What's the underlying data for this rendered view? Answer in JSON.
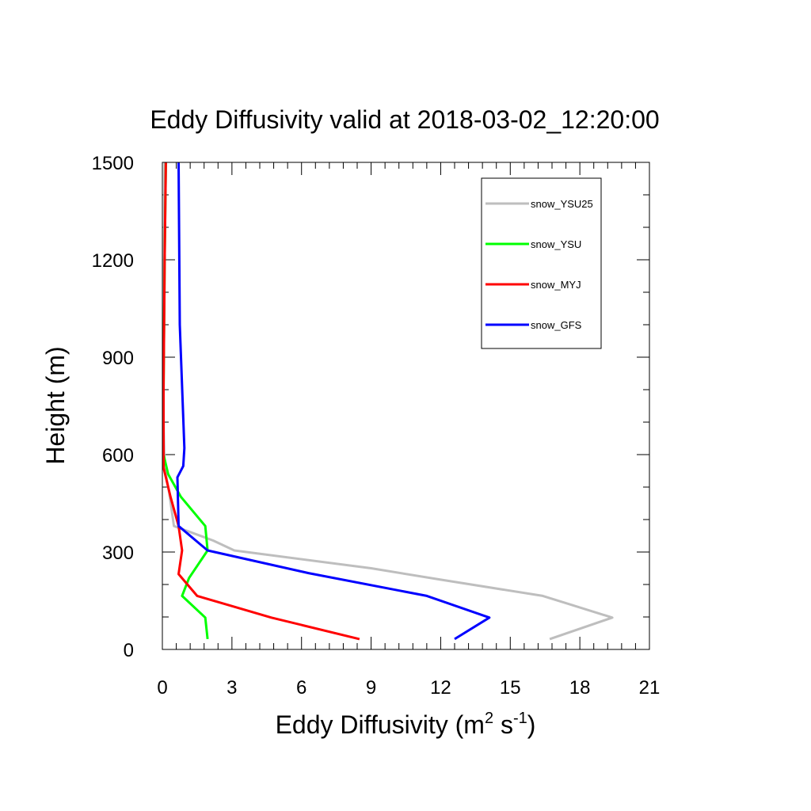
{
  "chart_data": {
    "type": "line",
    "title": "Eddy Diffusivity valid at 2018-03-02_12:20:00",
    "xlabel": "Eddy Diffusivity (m",
    "xlabel_sup1": "2",
    "xlabel_mid": " s",
    "xlabel_sup2": "-1",
    "xlabel_end": ")",
    "ylabel": "Height (m)",
    "xlim": [
      0,
      21
    ],
    "ylim": [
      0,
      1500
    ],
    "xticks": [
      0,
      3,
      6,
      9,
      12,
      15,
      18,
      21
    ],
    "yticks": [
      0,
      300,
      600,
      900,
      1200,
      1500
    ],
    "grid": false,
    "legend_position": "top-right",
    "series": [
      {
        "name": "snow_YSU25",
        "color": "#bebebe",
        "points": [
          [
            16.7,
            32
          ],
          [
            19.4,
            98
          ],
          [
            16.4,
            165
          ],
          [
            12.0,
            215
          ],
          [
            9.0,
            250
          ],
          [
            3.1,
            305
          ],
          [
            2.2,
            335
          ],
          [
            0.5,
            380
          ],
          [
            0.3,
            480
          ],
          [
            0.1,
            560
          ],
          [
            0.05,
            700
          ],
          [
            0.05,
            1000
          ],
          [
            0.1,
            1500
          ]
        ]
      },
      {
        "name": "snow_YSU",
        "color": "#00ff00",
        "points": [
          [
            1.95,
            32
          ],
          [
            1.85,
            98
          ],
          [
            0.85,
            165
          ],
          [
            1.15,
            220
          ],
          [
            1.95,
            305
          ],
          [
            1.85,
            380
          ],
          [
            0.8,
            470
          ],
          [
            0.25,
            540
          ],
          [
            0.05,
            600
          ],
          [
            0.05,
            800
          ],
          [
            0.1,
            1200
          ],
          [
            0.15,
            1500
          ]
        ]
      },
      {
        "name": "snow_MYJ",
        "color": "#ff0000",
        "points": [
          [
            8.5,
            32
          ],
          [
            4.7,
            98
          ],
          [
            1.5,
            165
          ],
          [
            0.7,
            232
          ],
          [
            0.85,
            305
          ],
          [
            0.7,
            380
          ],
          [
            0.35,
            470
          ],
          [
            0.05,
            560
          ],
          [
            0.05,
            800
          ],
          [
            0.1,
            1200
          ],
          [
            0.15,
            1500
          ]
        ]
      },
      {
        "name": "snow_GFS",
        "color": "#0000ff",
        "points": [
          [
            12.6,
            32
          ],
          [
            14.1,
            98
          ],
          [
            11.4,
            165
          ],
          [
            6.3,
            235
          ],
          [
            1.95,
            305
          ],
          [
            0.7,
            380
          ],
          [
            0.65,
            530
          ],
          [
            0.9,
            565
          ],
          [
            0.95,
            620
          ],
          [
            0.75,
            1000
          ],
          [
            0.7,
            1500
          ]
        ]
      }
    ]
  }
}
